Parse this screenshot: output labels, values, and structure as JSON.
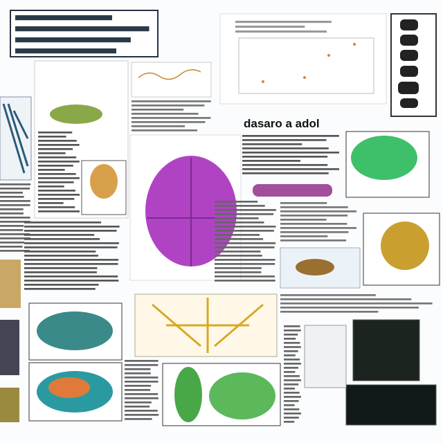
{
  "header": {
    "title": "dasaro a adol"
  }
}
